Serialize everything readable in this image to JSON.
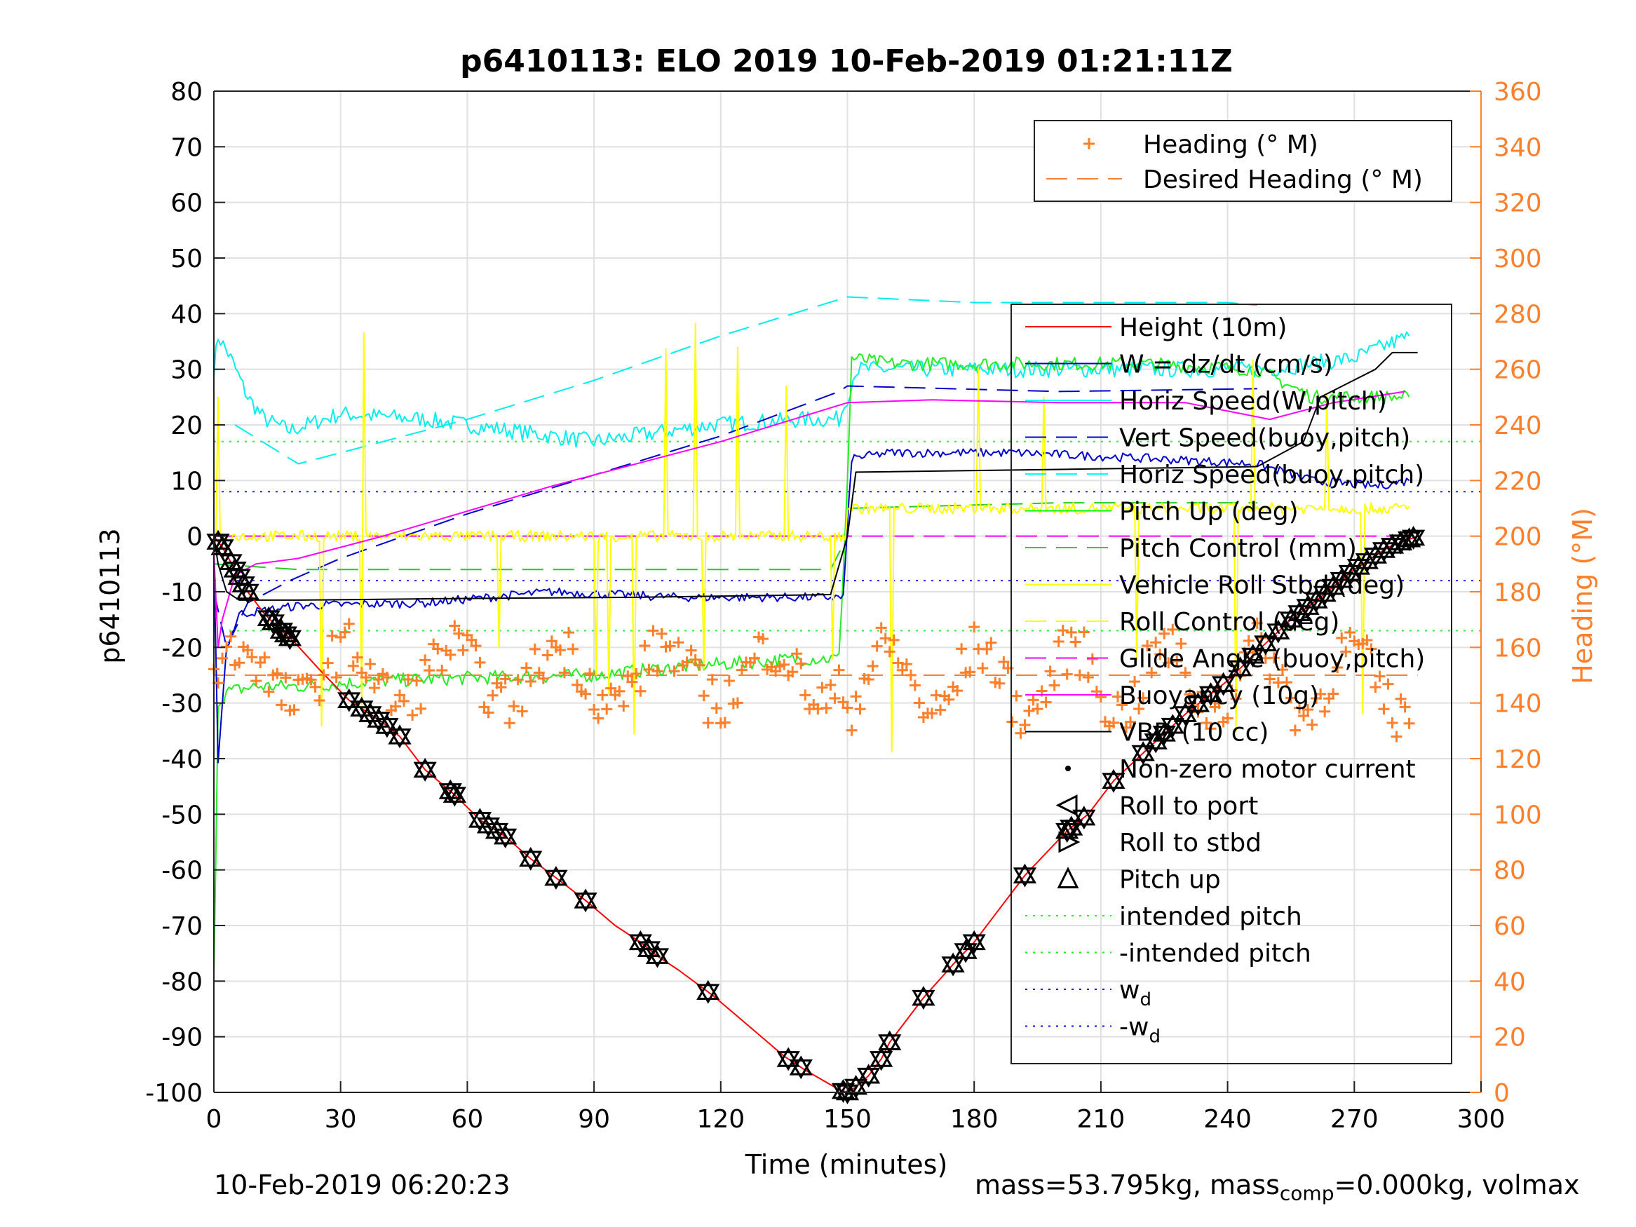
{
  "chart_data": {
    "type": "line",
    "title": "p6410113: ELO 2019 10-Feb-2019 01:21:11Z",
    "xlabel": "Time (minutes)",
    "ylabel": "p6410113",
    "y2label": "Heading (°M)",
    "xlim": [
      0,
      300
    ],
    "ylim": [
      -100,
      80
    ],
    "y2lim": [
      0,
      360
    ],
    "xticks": [
      "0",
      "30",
      "60",
      "90",
      "120",
      "150",
      "180",
      "210",
      "240",
      "270",
      "300"
    ],
    "yticks": [
      "80",
      "70",
      "60",
      "50",
      "40",
      "30",
      "20",
      "10",
      "0",
      "-10",
      "-20",
      "-30",
      "-40",
      "-50",
      "-60",
      "-70",
      "-80",
      "-90",
      "-100"
    ],
    "y2ticks": [
      "360",
      "340",
      "320",
      "300",
      "280",
      "260",
      "240",
      "220",
      "200",
      "180",
      "160",
      "140",
      "120",
      "100",
      "80",
      "60",
      "40",
      "20",
      "0"
    ],
    "grid": true,
    "legend_heading": [
      {
        "name": "Heading (° M)",
        "color": "#ff7f2a"
      },
      {
        "name": "Desired Heading (° M)",
        "color": "#ff7f2a"
      }
    ],
    "legend_main": [
      {
        "name": "Height (10m)",
        "color": "#ff0000"
      },
      {
        "name": "W = dz/dt (cm/s)",
        "color": "#0000cc"
      },
      {
        "name": "Horiz Speed(W,pitch)",
        "color": "#00ffff"
      },
      {
        "name": "Vert Speed(buoy,pitch)",
        "color": "#0000cc"
      },
      {
        "name": "Horiz Speed(buoy,pitch)",
        "color": "#00ffff"
      },
      {
        "name": "Pitch Up (deg)",
        "color": "#00ff00"
      },
      {
        "name": "Pitch Control (mm)",
        "color": "#00dd00"
      },
      {
        "name": "Vehicle Roll Stbd (deg)",
        "color": "#ffff00"
      },
      {
        "name": "Roll Control (deg)",
        "color": "#ffff00"
      },
      {
        "name": "Glide Angle (buoy,pitch)",
        "color": "#ff00ff"
      },
      {
        "name": "Buoyancy (10g)",
        "color": "#ff00ff"
      },
      {
        "name": "VBD (10 cc)",
        "color": "#000000"
      },
      {
        "name": "Non-zero motor current",
        "color": "#000000"
      },
      {
        "name": "Roll to port",
        "color": "#000000"
      },
      {
        "name": "Roll to stbd",
        "color": "#000000"
      },
      {
        "name": "Pitch up",
        "color": "#000000"
      },
      {
        "name": "intended pitch",
        "color": "#00ff00"
      },
      {
        "name": "-intended pitch",
        "color": "#00ff00"
      },
      {
        "name": "w",
        "sub": "d",
        "color": "#0000ff"
      },
      {
        "name": "-w",
        "sub": "d",
        "color": "#0000ff"
      }
    ],
    "series": {
      "height": [
        [
          0,
          0
        ],
        [
          2,
          -2
        ],
        [
          5,
          -6
        ],
        [
          8,
          -10
        ],
        [
          12,
          -14
        ],
        [
          16,
          -17
        ],
        [
          19,
          -19
        ],
        [
          25,
          -24
        ],
        [
          32,
          -29.5
        ],
        [
          36,
          -31.5
        ],
        [
          40,
          -33.5
        ],
        [
          44,
          -36
        ],
        [
          50,
          -42
        ],
        [
          57,
          -46.5
        ],
        [
          63,
          -51
        ],
        [
          69,
          -54
        ],
        [
          75,
          -58
        ],
        [
          82,
          -62
        ],
        [
          88,
          -65.5
        ],
        [
          95,
          -70
        ],
        [
          101,
          -73
        ],
        [
          105,
          -75.5
        ],
        [
          110,
          -78
        ],
        [
          118,
          -82.5
        ],
        [
          125,
          -87
        ],
        [
          135,
          -93.5
        ],
        [
          140,
          -96
        ],
        [
          148,
          -99.5
        ],
        [
          150,
          -100
        ],
        [
          152,
          -99
        ],
        [
          155,
          -97
        ],
        [
          158,
          -94
        ],
        [
          160,
          -91
        ],
        [
          168,
          -83
        ],
        [
          175,
          -77
        ],
        [
          180,
          -73
        ],
        [
          186,
          -67
        ],
        [
          192,
          -61
        ],
        [
          202,
          -53
        ],
        [
          207,
          -50
        ],
        [
          213,
          -44
        ],
        [
          220,
          -39
        ],
        [
          230,
          -32
        ],
        [
          240,
          -26
        ],
        [
          248,
          -20
        ],
        [
          255,
          -15
        ],
        [
          262,
          -11
        ],
        [
          270,
          -6
        ],
        [
          278,
          -2
        ],
        [
          285,
          0
        ]
      ],
      "height_markers_x": [
        1,
        2,
        4,
        5,
        6,
        7,
        8,
        13,
        14,
        16,
        17,
        18,
        32,
        35,
        37,
        39,
        41,
        44,
        50,
        56,
        57,
        63,
        65,
        67,
        69,
        75,
        81,
        88,
        101,
        103,
        105,
        117,
        136,
        139,
        149,
        150,
        152,
        155,
        158,
        160,
        168,
        175,
        178,
        180,
        192,
        202,
        203,
        206,
        213,
        220,
        223,
        225,
        227,
        230,
        233,
        236,
        239,
        243,
        246,
        249,
        252,
        255,
        257,
        259,
        261,
        263,
        265,
        267,
        269,
        271,
        273,
        275,
        277,
        279,
        281,
        283,
        284
      ],
      "vbd": [
        [
          0,
          0
        ],
        [
          1,
          -5
        ],
        [
          3,
          -10
        ],
        [
          6,
          -11.5
        ],
        [
          20,
          -11.5
        ],
        [
          60,
          -11.2
        ],
        [
          100,
          -11
        ],
        [
          146,
          -10.5
        ],
        [
          150,
          0
        ],
        [
          152,
          11.5
        ],
        [
          200,
          12
        ],
        [
          247,
          12.5
        ],
        [
          258,
          17
        ],
        [
          262,
          25
        ],
        [
          275,
          30
        ],
        [
          279,
          33
        ],
        [
          285,
          33
        ]
      ],
      "buoyancy": [
        [
          0,
          -3
        ],
        [
          1,
          -20
        ],
        [
          2,
          -15
        ],
        [
          5,
          -7
        ],
        [
          10,
          -5
        ],
        [
          20,
          -4
        ],
        [
          40,
          0
        ],
        [
          80,
          9
        ],
        [
          120,
          17
        ],
        [
          150,
          24
        ],
        [
          170,
          24.5
        ],
        [
          200,
          24
        ],
        [
          230,
          24
        ],
        [
          250,
          21
        ],
        [
          265,
          24
        ],
        [
          282,
          26
        ]
      ],
      "vert_speed": [
        [
          0,
          -10
        ],
        [
          3,
          -20
        ],
        [
          8,
          -12
        ],
        [
          18,
          -8
        ],
        [
          30,
          -4
        ],
        [
          60,
          4
        ],
        [
          90,
          11
        ],
        [
          120,
          18
        ],
        [
          148,
          26
        ],
        [
          150,
          27
        ],
        [
          200,
          26
        ],
        [
          247,
          26.5
        ]
      ],
      "horiz_speed": [
        [
          5,
          20
        ],
        [
          20,
          13
        ],
        [
          30,
          15
        ],
        [
          60,
          21
        ],
        [
          90,
          28
        ],
        [
          120,
          36
        ],
        [
          150,
          43
        ],
        [
          180,
          42
        ],
        [
          210,
          42
        ],
        [
          240,
          42
        ],
        [
          247,
          41.5
        ]
      ],
      "pitch_control_hi": [
        [
          150,
          5
        ],
        [
          200,
          6
        ],
        [
          247,
          6
        ]
      ],
      "pitch_control_lo": [
        [
          0,
          -5
        ],
        [
          20,
          -6
        ],
        [
          60,
          -6
        ],
        [
          100,
          -6
        ],
        [
          146,
          -6
        ],
        [
          150,
          0
        ]
      ],
      "heading_desired_deg": 150,
      "intended_pitch": 17,
      "wd": 8,
      "glide_angle_const": 0
    }
  },
  "footer": {
    "timestamp": "10-Feb-2019 06:20:23",
    "mass_text": "mass=53.795kg, mass",
    "mass_sub": "comp",
    "mass_tail": "=0.000kg, volmax"
  }
}
